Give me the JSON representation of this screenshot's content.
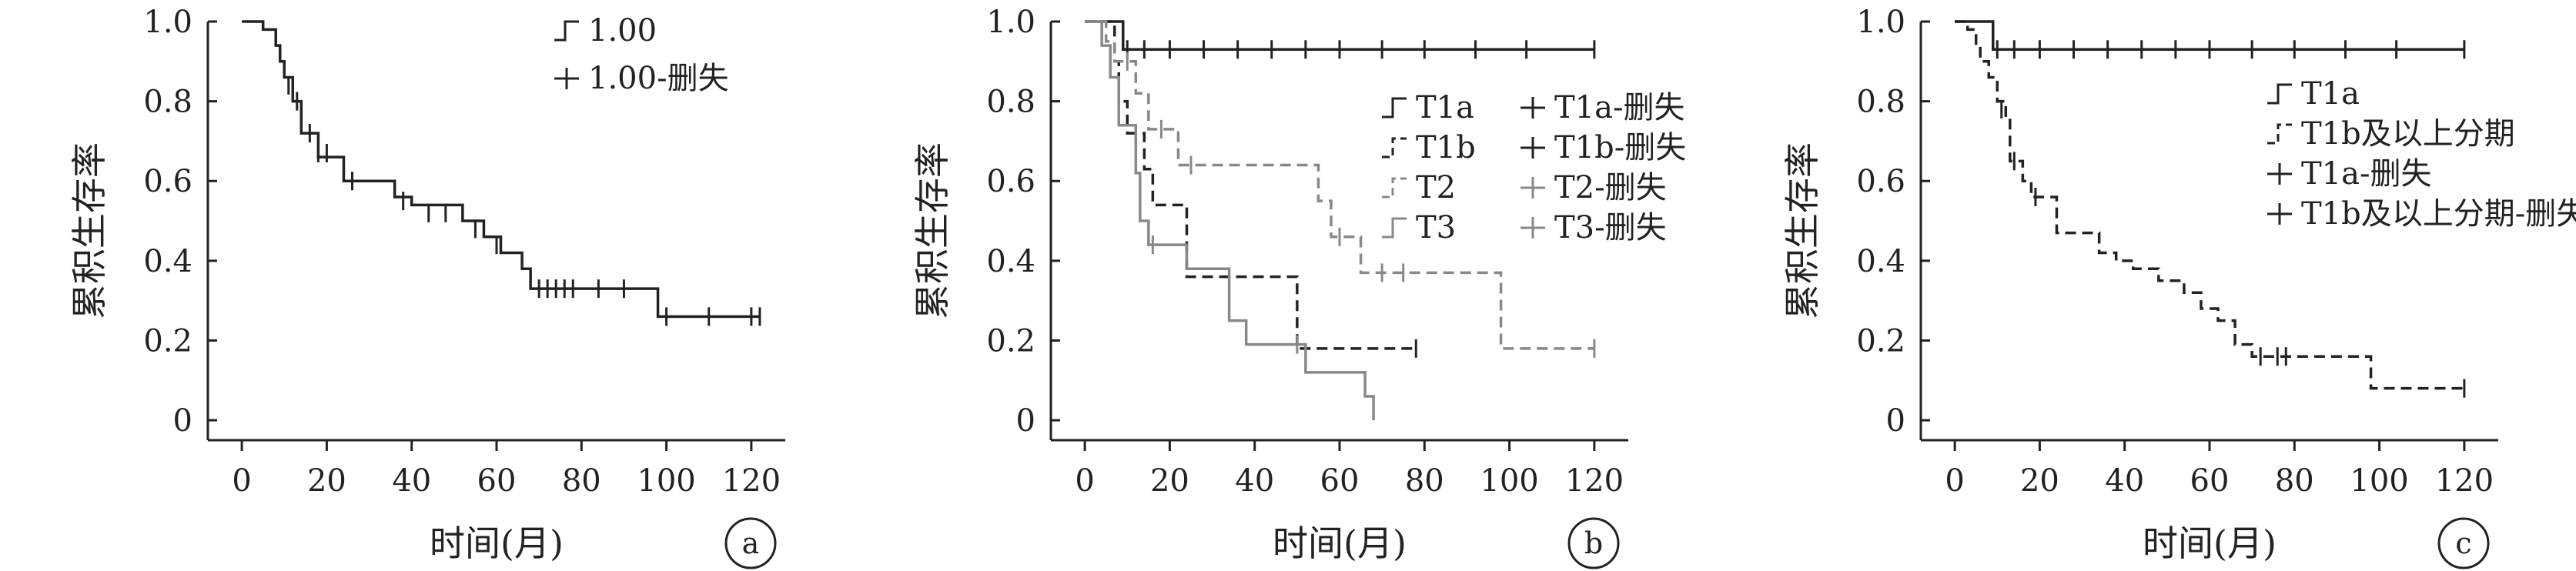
{
  "colors": {
    "axis": "#222222",
    "black_series": "#222222",
    "gray_series": "#888888",
    "text": "#222222"
  },
  "chart_data": [
    {
      "id": "a",
      "type": "line",
      "subtype": "kaplan-meier-step",
      "panel_label": "a",
      "xlabel": "时间(月)",
      "ylabel": "累积生存率",
      "xlim": [
        -8,
        128
      ],
      "ylim": [
        -0.05,
        1.0
      ],
      "xticks": [
        0,
        20,
        40,
        60,
        80,
        100,
        120
      ],
      "yticks": [
        0,
        0.2,
        0.4,
        0.6,
        0.8,
        1.0
      ],
      "ytick_labels": [
        "0",
        "0.2",
        "0.4",
        "0.6",
        "0.8",
        "1.0"
      ],
      "legend_position": "top-right",
      "legend_layout": "single-column",
      "series": [
        {
          "name": "1.00",
          "censored_name": "1.00-删失",
          "color": "#222222",
          "dash": "solid",
          "steps": [
            [
              0,
              1.0
            ],
            [
              5,
              0.98
            ],
            [
              8,
              0.94
            ],
            [
              9,
              0.9
            ],
            [
              10,
              0.86
            ],
            [
              12,
              0.8
            ],
            [
              14,
              0.72
            ],
            [
              18,
              0.66
            ],
            [
              24,
              0.6
            ],
            [
              36,
              0.56
            ],
            [
              40,
              0.54
            ],
            [
              52,
              0.5
            ],
            [
              57,
              0.46
            ],
            [
              61,
              0.42
            ],
            [
              66,
              0.38
            ],
            [
              68,
              0.33
            ],
            [
              98,
              0.26
            ],
            [
              122,
              0.26
            ]
          ],
          "censored": [
            [
              11,
              0.84
            ],
            [
              13,
              0.8
            ],
            [
              16,
              0.72
            ],
            [
              18,
              0.67
            ],
            [
              20,
              0.67
            ],
            [
              26,
              0.6
            ],
            [
              38,
              0.55
            ],
            [
              44,
              0.52
            ],
            [
              48,
              0.52
            ],
            [
              55,
              0.48
            ],
            [
              60,
              0.44
            ],
            [
              70,
              0.33
            ],
            [
              72,
              0.33
            ],
            [
              74,
              0.33
            ],
            [
              76,
              0.33
            ],
            [
              78,
              0.33
            ],
            [
              84,
              0.33
            ],
            [
              90,
              0.33
            ],
            [
              100,
              0.26
            ],
            [
              110,
              0.26
            ],
            [
              120,
              0.26
            ],
            [
              122,
              0.26
            ]
          ]
        }
      ]
    },
    {
      "id": "b",
      "type": "line",
      "subtype": "kaplan-meier-step",
      "panel_label": "b",
      "xlabel": "时间(月)",
      "ylabel": "累积生存率",
      "xlim": [
        -8,
        128
      ],
      "ylim": [
        -0.05,
        1.0
      ],
      "xticks": [
        0,
        20,
        40,
        60,
        80,
        100,
        120
      ],
      "yticks": [
        0,
        0.2,
        0.4,
        0.6,
        0.8,
        1.0
      ],
      "ytick_labels": [
        "0",
        "0.2",
        "0.4",
        "0.6",
        "0.8",
        "1.0"
      ],
      "legend_position": "right",
      "legend_layout": "two-column",
      "series": [
        {
          "name": "T1a",
          "censored_name": "T1a-删失",
          "color": "#222222",
          "dash": "solid",
          "steps": [
            [
              0,
              1.0
            ],
            [
              9,
              0.93
            ],
            [
              120,
              0.93
            ]
          ],
          "censored": [
            [
              10,
              0.93
            ],
            [
              14,
              0.93
            ],
            [
              20,
              0.93
            ],
            [
              28,
              0.93
            ],
            [
              36,
              0.93
            ],
            [
              44,
              0.93
            ],
            [
              52,
              0.93
            ],
            [
              60,
              0.93
            ],
            [
              70,
              0.93
            ],
            [
              80,
              0.93
            ],
            [
              92,
              0.93
            ],
            [
              104,
              0.93
            ],
            [
              120,
              0.93
            ]
          ]
        },
        {
          "name": "T1b",
          "censored_name": "T1b-删失",
          "color": "#222222",
          "dash": "dashed",
          "steps": [
            [
              0,
              1.0
            ],
            [
              7,
              0.9
            ],
            [
              8,
              0.8
            ],
            [
              10,
              0.72
            ],
            [
              14,
              0.63
            ],
            [
              16,
              0.54
            ],
            [
              24,
              0.36
            ],
            [
              36,
              0.36
            ],
            [
              50,
              0.18
            ],
            [
              78,
              0.18
            ]
          ],
          "censored": [
            [
              12,
              0.72
            ],
            [
              78,
              0.18
            ]
          ]
        },
        {
          "name": "T2",
          "censored_name": "T2-删失",
          "color": "#888888",
          "dash": "dashed",
          "steps": [
            [
              0,
              1.0
            ],
            [
              5,
              0.95
            ],
            [
              7,
              0.9
            ],
            [
              12,
              0.82
            ],
            [
              15,
              0.73
            ],
            [
              22,
              0.64
            ],
            [
              55,
              0.55
            ],
            [
              58,
              0.46
            ],
            [
              65,
              0.37
            ],
            [
              98,
              0.18
            ],
            [
              120,
              0.18
            ]
          ],
          "censored": [
            [
              10,
              0.9
            ],
            [
              18,
              0.73
            ],
            [
              25,
              0.64
            ],
            [
              60,
              0.46
            ],
            [
              70,
              0.37
            ],
            [
              75,
              0.37
            ],
            [
              120,
              0.18
            ]
          ]
        },
        {
          "name": "T3",
          "censored_name": "T3-删失",
          "color": "#888888",
          "dash": "solid",
          "steps": [
            [
              0,
              1.0
            ],
            [
              4,
              0.94
            ],
            [
              6,
              0.86
            ],
            [
              8,
              0.74
            ],
            [
              12,
              0.62
            ],
            [
              13,
              0.5
            ],
            [
              15,
              0.44
            ],
            [
              24,
              0.38
            ],
            [
              34,
              0.25
            ],
            [
              38,
              0.19
            ],
            [
              52,
              0.12
            ],
            [
              66,
              0.06
            ],
            [
              68,
              0.0
            ]
          ],
          "censored": [
            [
              16,
              0.44
            ],
            [
              50,
              0.19
            ]
          ]
        }
      ]
    },
    {
      "id": "c",
      "type": "line",
      "subtype": "kaplan-meier-step",
      "panel_label": "c",
      "xlabel": "时间(月)",
      "ylabel": "累积生存率",
      "xlim": [
        -8,
        128
      ],
      "ylim": [
        -0.05,
        1.0
      ],
      "xticks": [
        0,
        20,
        40,
        60,
        80,
        100,
        120
      ],
      "yticks": [
        0,
        0.2,
        0.4,
        0.6,
        0.8,
        1.0
      ],
      "ytick_labels": [
        "0",
        "0.2",
        "0.4",
        "0.6",
        "0.8",
        "1.0"
      ],
      "legend_position": "right",
      "legend_layout": "single-column",
      "legend_order": [
        "T1a",
        "T1b及以上分期",
        "T1a-删失",
        "T1b及以上分期-删失"
      ],
      "series": [
        {
          "name": "T1a",
          "censored_name": "T1a-删失",
          "color": "#222222",
          "dash": "solid",
          "steps": [
            [
              0,
              1.0
            ],
            [
              9,
              0.93
            ],
            [
              120,
              0.93
            ]
          ],
          "censored": [
            [
              10,
              0.93
            ],
            [
              14,
              0.93
            ],
            [
              20,
              0.93
            ],
            [
              28,
              0.93
            ],
            [
              36,
              0.93
            ],
            [
              44,
              0.93
            ],
            [
              52,
              0.93
            ],
            [
              60,
              0.93
            ],
            [
              70,
              0.93
            ],
            [
              80,
              0.93
            ],
            [
              92,
              0.93
            ],
            [
              104,
              0.93
            ],
            [
              120,
              0.93
            ]
          ]
        },
        {
          "name": "T1b及以上分期",
          "censored_name": "T1b及以上分期-删失",
          "color": "#222222",
          "dash": "dashed",
          "steps": [
            [
              0,
              1.0
            ],
            [
              3,
              0.98
            ],
            [
              5,
              0.94
            ],
            [
              6,
              0.9
            ],
            [
              8,
              0.86
            ],
            [
              10,
              0.8
            ],
            [
              12,
              0.76
            ],
            [
              13,
              0.65
            ],
            [
              16,
              0.6
            ],
            [
              18,
              0.56
            ],
            [
              24,
              0.47
            ],
            [
              30,
              0.47
            ],
            [
              34,
              0.42
            ],
            [
              38,
              0.4
            ],
            [
              42,
              0.38
            ],
            [
              48,
              0.35
            ],
            [
              54,
              0.32
            ],
            [
              58,
              0.28
            ],
            [
              62,
              0.25
            ],
            [
              66,
              0.19
            ],
            [
              70,
              0.16
            ],
            [
              98,
              0.08
            ],
            [
              120,
              0.08
            ]
          ],
          "censored": [
            [
              11,
              0.78
            ],
            [
              14,
              0.65
            ],
            [
              19,
              0.56
            ],
            [
              72,
              0.16
            ],
            [
              76,
              0.16
            ],
            [
              78,
              0.16
            ],
            [
              120,
              0.08
            ]
          ]
        }
      ]
    }
  ]
}
